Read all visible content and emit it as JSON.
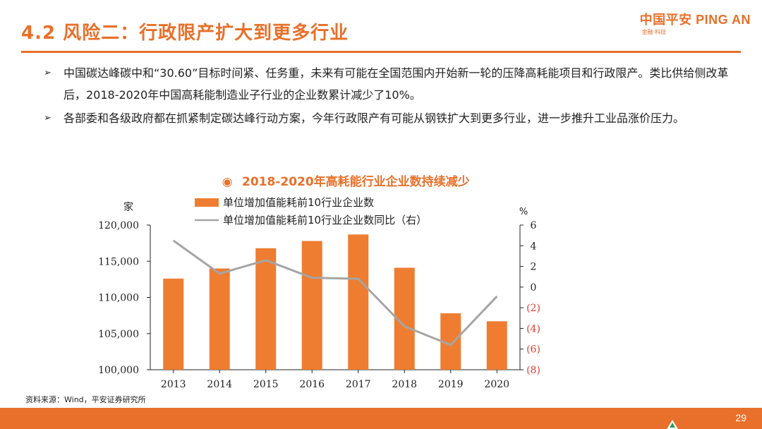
{
  "header": {
    "title": "4.2 风险二：行政限产扩大到更多行业",
    "logo_main": "中国平安 PING AN",
    "logo_sub": "金融·科技"
  },
  "bullets": [
    {
      "text": "中国碳达峰碳中和“30.60”目标时间紧、任务重，未来有可能在全国范围内开始新一轮的压降高耗能项目和行政限产。类比供给侧改革后，2018-2020年中国高耗能制造业子行业的企业数累计减少了10%。"
    },
    {
      "text": "各部委和各级政府都在抓紧制定碳达峰行动方案，今年行政限产有可能从钢铁扩大到更多行业，进一步推升工业品涨价压力。"
    }
  ],
  "source": "资料来源：Wind，平安证券研究所",
  "page_number": "29",
  "chart_data": {
    "type": "bar",
    "title": "2018-2020年高耗能行业企业数持续减少",
    "title_marker": "◉",
    "categories": [
      "2013",
      "2014",
      "2015",
      "2016",
      "2017",
      "2018",
      "2019",
      "2020"
    ],
    "series": [
      {
        "name": "单位增加值能耗前10行业企业数",
        "type": "bar",
        "axis": "left",
        "values": [
          112600,
          114000,
          116800,
          117800,
          118700,
          114100,
          107800,
          106700
        ]
      },
      {
        "name": "单位增加值能耗前10行业企业数同比（右）",
        "type": "line",
        "axis": "right",
        "values": [
          4.5,
          1.3,
          2.6,
          0.9,
          0.8,
          -3.8,
          -5.6,
          -0.9
        ]
      }
    ],
    "ylabel_left": "家",
    "ylabel_right": "%",
    "ylim_left": [
      100000,
      120000
    ],
    "ylim_right": [
      -8,
      6
    ],
    "yticks_left": [
      "120,000",
      "115,000",
      "110,000",
      "105,000",
      "100,000"
    ],
    "yticks_right": [
      "6",
      "4",
      "2",
      "0",
      "(2)",
      "(4)",
      "(6)",
      "(8)"
    ],
    "yticks_right_values": [
      6,
      4,
      2,
      0,
      -2,
      -4,
      -6,
      -8
    ],
    "yticks_left_values": [
      120000,
      115000,
      110000,
      105000,
      100000
    ],
    "colors": {
      "bar": "#EE7D31",
      "line": "#A5A5A5",
      "negative_tick": "#E03C31",
      "title": "#E8702A"
    }
  }
}
